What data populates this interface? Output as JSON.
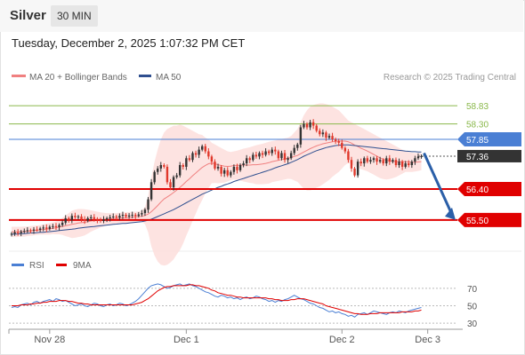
{
  "header": {
    "symbol": "Silver",
    "timeframe": "30 MIN",
    "datetime": "Tuesday, December 2, 2025 1:07:32 PM CET"
  },
  "legend": {
    "ma20_label": "MA 20 + Bollinger Bands",
    "ma50_label": "MA 50",
    "credit": "Research © 2025 Trading Central",
    "rsi_label": "RSI",
    "rsi_ma_label": "9MA"
  },
  "colors": {
    "up_candle": "#333333",
    "down_candle": "#e0382b",
    "ma20": "#f08080",
    "bollinger_fill": "#fde0de",
    "ma50": "#2f4f8f",
    "resistance": "#8ab84a",
    "pivot": "#4a7fd4",
    "support": "#e00000",
    "current_price_bg": "#333333",
    "forecast_arrow": "#2b5fa8",
    "rsi_line": "#4a7fd4",
    "rsi_ma_line": "#e00000"
  },
  "chart_data": [
    {
      "type": "candlestick",
      "x_labels": [
        "Nov 28",
        "Dec 1",
        "Dec 2",
        "Dec 3"
      ],
      "ylim": [
        54.9,
        59.3
      ],
      "price_levels": [
        {
          "value": 58.83,
          "label": "58.83",
          "kind": "resistance"
        },
        {
          "value": 58.3,
          "label": "58.30",
          "kind": "resistance"
        },
        {
          "value": 57.85,
          "label": "57.85",
          "kind": "pivot"
        },
        {
          "value": 57.36,
          "label": "57.36",
          "kind": "current"
        },
        {
          "value": 56.4,
          "label": "56.40",
          "kind": "support"
        },
        {
          "value": 55.5,
          "label": "55.50",
          "kind": "support"
        }
      ],
      "forecast": {
        "from": 57.45,
        "to": 55.5
      },
      "close": [
        55.1,
        55.14,
        55.12,
        55.16,
        55.18,
        55.2,
        55.19,
        55.22,
        55.21,
        55.25,
        55.28,
        55.24,
        55.3,
        55.32,
        55.29,
        55.35,
        55.42,
        55.55,
        55.5,
        55.62,
        55.58,
        55.6,
        55.52,
        55.48,
        55.55,
        55.58,
        55.53,
        55.5,
        55.47,
        55.52,
        55.55,
        55.58,
        55.6,
        55.57,
        55.62,
        55.65,
        55.6,
        55.63,
        55.65,
        55.62,
        55.66,
        55.7,
        55.8,
        56.1,
        56.6,
        56.9,
        57.0,
        57.1,
        57.05,
        56.6,
        56.45,
        56.75,
        56.8,
        57.1,
        57.05,
        57.3,
        57.25,
        57.45,
        57.4,
        57.55,
        57.65,
        57.5,
        57.35,
        57.2,
        57.0,
        57.05,
        56.85,
        56.95,
        56.8,
        56.9,
        57.05,
        56.95,
        57.1,
        57.15,
        57.3,
        57.25,
        57.4,
        57.35,
        57.45,
        57.4,
        57.5,
        57.45,
        57.55,
        57.5,
        57.3,
        57.45,
        57.25,
        57.3,
        57.45,
        57.6,
        57.7,
        58.2,
        58.3,
        58.2,
        58.35,
        58.25,
        58.1,
        58.0,
        58.05,
        57.9,
        57.95,
        57.85,
        57.8,
        57.75,
        57.6,
        57.5,
        57.25,
        57.0,
        56.8,
        57.2,
        57.15,
        57.3,
        57.2,
        57.25,
        57.3,
        57.2,
        57.25,
        57.15,
        57.3,
        57.2,
        57.25,
        57.1,
        57.2,
        57.05,
        57.15,
        57.1,
        57.2,
        57.3,
        57.35,
        57.36
      ],
      "ma20": [
        55.15,
        55.15,
        55.15,
        55.16,
        55.16,
        55.17,
        55.18,
        55.19,
        55.2,
        55.21,
        55.22,
        55.23,
        55.24,
        55.26,
        55.27,
        55.29,
        55.31,
        55.33,
        55.35,
        55.37,
        55.39,
        55.41,
        55.42,
        55.43,
        55.45,
        55.47,
        55.48,
        55.49,
        55.5,
        55.51,
        55.52,
        55.53,
        55.54,
        55.54,
        55.55,
        55.56,
        55.56,
        55.57,
        55.58,
        55.59,
        55.6,
        55.61,
        55.63,
        55.67,
        55.74,
        55.83,
        55.92,
        56.02,
        56.11,
        56.17,
        56.23,
        56.3,
        56.37,
        56.45,
        56.53,
        56.62,
        56.7,
        56.79,
        56.87,
        56.95,
        57.03,
        57.09,
        57.14,
        57.16,
        57.14,
        57.11,
        57.09,
        57.07,
        57.06,
        57.07,
        57.09,
        57.09,
        57.1,
        57.1,
        57.1,
        57.1,
        57.11,
        57.11,
        57.12,
        57.13,
        57.15,
        57.17,
        57.2,
        57.22,
        57.24,
        57.26,
        57.28,
        57.3,
        57.32,
        57.35,
        57.38,
        57.43,
        57.48,
        57.53,
        57.58,
        57.62,
        57.66,
        57.69,
        57.72,
        57.74,
        57.76,
        57.78,
        57.79,
        57.8,
        57.8,
        57.8,
        57.78,
        57.74,
        57.68,
        57.64,
        57.59,
        57.55,
        57.51,
        57.46,
        57.41,
        57.36,
        57.31,
        57.27,
        57.24,
        57.22,
        57.21,
        57.2,
        57.2,
        57.2,
        57.2,
        57.19,
        57.18,
        57.18,
        57.19,
        57.2
      ],
      "bollinger_upper": [
        55.3,
        55.3,
        55.3,
        55.3,
        55.31,
        55.31,
        55.32,
        55.33,
        55.34,
        55.35,
        55.37,
        55.39,
        55.41,
        55.43,
        55.46,
        55.5,
        55.56,
        55.63,
        55.7,
        55.77,
        55.8,
        55.82,
        55.82,
        55.81,
        55.8,
        55.78,
        55.76,
        55.74,
        55.72,
        55.71,
        55.7,
        55.7,
        55.7,
        55.7,
        55.71,
        55.72,
        55.72,
        55.73,
        55.74,
        55.74,
        55.75,
        55.78,
        55.88,
        56.2,
        56.75,
        57.2,
        57.55,
        57.85,
        58.05,
        58.15,
        58.2,
        58.25,
        58.25,
        58.28,
        58.25,
        58.2,
        58.15,
        58.1,
        58.05,
        58.0,
        57.98,
        57.9,
        57.85,
        57.75,
        57.7,
        57.65,
        57.6,
        57.55,
        57.5,
        57.48,
        57.5,
        57.52,
        57.55,
        57.58,
        57.6,
        57.62,
        57.65,
        57.68,
        57.7,
        57.72,
        57.75,
        57.78,
        57.8,
        57.82,
        57.84,
        57.86,
        57.88,
        57.9,
        57.95,
        58.05,
        58.15,
        58.35,
        58.55,
        58.7,
        58.8,
        58.85,
        58.88,
        58.9,
        58.9,
        58.88,
        58.85,
        58.8,
        58.75,
        58.7,
        58.6,
        58.5,
        58.4,
        58.35,
        58.3,
        58.25,
        58.2,
        58.15,
        58.1,
        58.05,
        58.0,
        57.95,
        57.9,
        57.85,
        57.8,
        57.75,
        57.7,
        57.65,
        57.6,
        57.55,
        57.5,
        57.48,
        57.46,
        57.45,
        57.45,
        57.45
      ],
      "bollinger_lower": [
        55.0,
        55.0,
        55.0,
        55.02,
        55.01,
        55.03,
        55.04,
        55.05,
        55.06,
        55.07,
        55.07,
        55.07,
        55.07,
        55.09,
        55.08,
        55.08,
        55.06,
        55.03,
        55.0,
        54.97,
        54.98,
        55.0,
        55.02,
        55.05,
        55.1,
        55.16,
        55.2,
        55.24,
        55.28,
        55.31,
        55.34,
        55.36,
        55.38,
        55.38,
        55.39,
        55.4,
        55.4,
        55.41,
        55.42,
        55.44,
        55.45,
        55.44,
        55.38,
        55.14,
        54.73,
        54.46,
        54.29,
        54.19,
        54.17,
        54.19,
        54.26,
        54.35,
        54.49,
        54.62,
        54.81,
        55.04,
        55.25,
        55.48,
        55.69,
        55.9,
        56.08,
        56.28,
        56.43,
        56.57,
        56.58,
        56.57,
        56.58,
        56.59,
        56.62,
        56.66,
        56.68,
        56.66,
        56.65,
        56.62,
        56.6,
        56.58,
        56.57,
        56.54,
        56.54,
        56.54,
        56.55,
        56.56,
        56.6,
        56.62,
        56.64,
        56.66,
        56.68,
        56.7,
        56.69,
        56.65,
        56.61,
        56.51,
        56.41,
        56.36,
        56.36,
        56.39,
        56.44,
        56.48,
        56.54,
        56.6,
        56.67,
        56.76,
        56.83,
        56.9,
        57.0,
        57.1,
        57.16,
        57.13,
        57.06,
        57.03,
        56.98,
        56.95,
        56.92,
        56.87,
        56.82,
        56.77,
        56.72,
        56.69,
        56.68,
        56.69,
        56.72,
        56.75,
        56.8,
        56.85,
        56.9,
        56.9,
        56.9,
        56.91,
        56.93,
        56.95
      ],
      "ma50": [
        55.08,
        55.09,
        55.09,
        55.1,
        55.1,
        55.11,
        55.12,
        55.12,
        55.13,
        55.14,
        55.14,
        55.15,
        55.16,
        55.17,
        55.18,
        55.19,
        55.2,
        55.21,
        55.22,
        55.23,
        55.24,
        55.26,
        55.27,
        55.28,
        55.29,
        55.3,
        55.31,
        55.32,
        55.33,
        55.34,
        55.35,
        55.36,
        55.37,
        55.38,
        55.39,
        55.4,
        55.4,
        55.41,
        55.42,
        55.43,
        55.44,
        55.45,
        55.47,
        55.49,
        55.52,
        55.56,
        55.6,
        55.64,
        55.68,
        55.72,
        55.76,
        55.8,
        55.85,
        55.9,
        55.95,
        56.0,
        56.05,
        56.1,
        56.15,
        56.2,
        56.25,
        56.29,
        56.33,
        56.37,
        56.41,
        56.45,
        56.48,
        56.52,
        56.55,
        56.58,
        56.62,
        56.65,
        56.68,
        56.71,
        56.74,
        56.77,
        56.8,
        56.83,
        56.86,
        56.89,
        56.92,
        56.95,
        56.98,
        57.02,
        57.05,
        57.08,
        57.11,
        57.14,
        57.18,
        57.22,
        57.26,
        57.31,
        57.36,
        57.4,
        57.44,
        57.48,
        57.52,
        57.55,
        57.58,
        57.61,
        57.63,
        57.65,
        57.67,
        57.68,
        57.69,
        57.69,
        57.69,
        57.68,
        57.67,
        57.66,
        57.65,
        57.64,
        57.63,
        57.62,
        57.61,
        57.6,
        57.59,
        57.58,
        57.57,
        57.56,
        57.55,
        57.54,
        57.53,
        57.52,
        57.51,
        57.5,
        57.49,
        57.49,
        57.48,
        57.48
      ]
    },
    {
      "type": "line",
      "ylim": [
        20,
        80
      ],
      "y_ticks": [
        70,
        50,
        30
      ],
      "series": [
        {
          "name": "RSI",
          "values": [
            48,
            49,
            48,
            51,
            52,
            53,
            51,
            54,
            55,
            53,
            55,
            56,
            57,
            55,
            58,
            57,
            55,
            56,
            54,
            52,
            50,
            51,
            52,
            50,
            49,
            51,
            53,
            52,
            50,
            49,
            51,
            52,
            50,
            51,
            53,
            52,
            50,
            51,
            53,
            55,
            58,
            62,
            66,
            70,
            73,
            74,
            75,
            74,
            72,
            70,
            71,
            73,
            74,
            75,
            73,
            74,
            75,
            73,
            72,
            70,
            68,
            66,
            65,
            63,
            61,
            60,
            62,
            61,
            59,
            60,
            58,
            59,
            57,
            59,
            60,
            58,
            59,
            61,
            60,
            58,
            57,
            55,
            56,
            54,
            56,
            55,
            57,
            58,
            60,
            62,
            60,
            58,
            57,
            55,
            53,
            52,
            50,
            48,
            47,
            45,
            43,
            44,
            42,
            43,
            41,
            40,
            38,
            39,
            37,
            40,
            41,
            42,
            40,
            42,
            44,
            43,
            42,
            41,
            40,
            42,
            43,
            42,
            44,
            43,
            42,
            44,
            45,
            46,
            47,
            48
          ]
        },
        {
          "name": "9MA",
          "values": [
            50,
            50,
            50,
            51,
            51,
            51,
            52,
            52,
            53,
            53,
            54,
            54,
            55,
            55,
            55,
            56,
            56,
            56,
            55,
            55,
            54,
            53,
            53,
            52,
            52,
            51,
            51,
            51,
            51,
            51,
            51,
            51,
            51,
            51,
            51,
            51,
            51,
            51,
            51,
            52,
            53,
            54,
            56,
            58,
            61,
            64,
            67,
            69,
            71,
            72,
            72,
            73,
            73,
            73,
            73,
            73,
            74,
            74,
            73,
            73,
            72,
            71,
            70,
            68,
            67,
            65,
            64,
            63,
            62,
            62,
            61,
            60,
            60,
            59,
            59,
            59,
            59,
            59,
            59,
            59,
            59,
            58,
            58,
            57,
            57,
            56,
            56,
            56,
            57,
            57,
            58,
            58,
            58,
            57,
            56,
            55,
            54,
            53,
            52,
            50,
            49,
            48,
            47,
            46,
            45,
            44,
            43,
            42,
            41,
            41,
            40,
            40,
            40,
            41,
            41,
            41,
            42,
            42,
            42,
            42,
            42,
            42,
            42,
            43,
            43,
            43,
            43,
            44,
            44,
            45
          ]
        }
      ]
    }
  ]
}
